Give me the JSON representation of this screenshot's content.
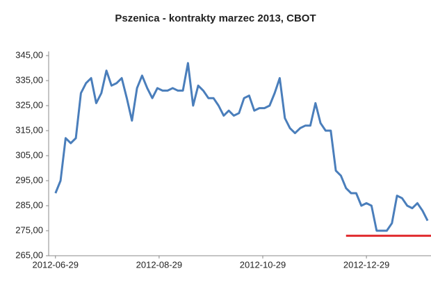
{
  "chart_data": {
    "type": "line",
    "title": "Pszenica - kontrakty marzec 2013, CBOT",
    "x": [
      "2012-06-29",
      "2012-07-02",
      "2012-07-05",
      "2012-07-08",
      "2012-07-11",
      "2012-07-14",
      "2012-07-17",
      "2012-07-20",
      "2012-07-23",
      "2012-07-26",
      "2012-07-29",
      "2012-08-01",
      "2012-08-04",
      "2012-08-07",
      "2012-08-10",
      "2012-08-13",
      "2012-08-16",
      "2012-08-19",
      "2012-08-22",
      "2012-08-25",
      "2012-08-28",
      "2012-08-31",
      "2012-09-03",
      "2012-09-06",
      "2012-09-09",
      "2012-09-12",
      "2012-09-15",
      "2012-09-18",
      "2012-09-21",
      "2012-09-24",
      "2012-09-27",
      "2012-09-30",
      "2012-10-03",
      "2012-10-06",
      "2012-10-09",
      "2012-10-12",
      "2012-10-15",
      "2012-10-18",
      "2012-10-21",
      "2012-10-24",
      "2012-10-27",
      "2012-10-30",
      "2012-11-02",
      "2012-11-05",
      "2012-11-08",
      "2012-11-11",
      "2012-11-14",
      "2012-11-17",
      "2012-11-20",
      "2012-11-23",
      "2012-11-26",
      "2012-11-29",
      "2012-12-02",
      "2012-12-05",
      "2012-12-08",
      "2012-12-11",
      "2012-12-14",
      "2012-12-17",
      "2012-12-20",
      "2012-12-23",
      "2012-12-26",
      "2012-12-29",
      "2013-01-01",
      "2013-01-04",
      "2013-01-07",
      "2013-01-10",
      "2013-01-13",
      "2013-01-16",
      "2013-01-19",
      "2013-01-22",
      "2013-01-25",
      "2013-01-28",
      "2013-01-31",
      "2013-02-03"
    ],
    "series": [
      {
        "name": "Pszenica",
        "color": "#4a7ebb",
        "values": [
          290,
          295,
          312,
          310,
          312,
          330,
          334,
          336,
          326,
          330,
          339,
          333,
          334,
          336,
          328,
          319,
          332,
          337,
          332,
          328,
          332,
          331,
          331,
          332,
          331,
          331,
          342,
          325,
          333,
          331,
          328,
          328,
          325,
          321,
          323,
          321,
          322,
          328,
          329,
          323,
          324,
          324,
          325,
          330,
          336,
          320,
          316,
          314,
          316,
          317,
          317,
          326,
          318,
          315,
          315,
          299,
          297,
          292,
          290,
          290,
          285,
          286,
          285,
          275,
          275,
          275,
          278,
          289,
          288,
          285,
          284,
          286,
          283,
          279
        ]
      }
    ],
    "xlim": [
      "2012-06-25",
      "2013-02-05"
    ],
    "xticks": [
      "2012-06-29",
      "2012-08-29",
      "2012-10-29",
      "2012-12-29"
    ],
    "ylim": [
      265,
      345
    ],
    "yticks": [
      {
        "value": 265,
        "label": "265,00"
      },
      {
        "value": 275,
        "label": "275,00"
      },
      {
        "value": 285,
        "label": "285,00"
      },
      {
        "value": 295,
        "label": "295,00"
      },
      {
        "value": 305,
        "label": "305,00"
      },
      {
        "value": 315,
        "label": "315,00"
      },
      {
        "value": 325,
        "label": "325,00"
      },
      {
        "value": 335,
        "label": "335,00"
      },
      {
        "value": 345,
        "label": "345,00"
      }
    ],
    "grid": false,
    "reference_line": {
      "value": 273,
      "color": "#e0282c",
      "x": [
        "2012-12-17",
        "2013-02-05"
      ]
    }
  }
}
